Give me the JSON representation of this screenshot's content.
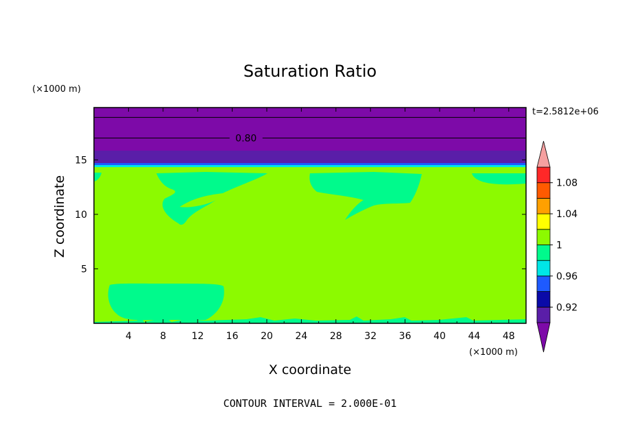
{
  "chart_data": {
    "type": "contour",
    "title": "Saturation Ratio",
    "xlabel": "X coordinate",
    "ylabel": "Z coordinate",
    "x_unit": "(×1000 m)",
    "y_unit": "(×1000 m)",
    "xlim": [
      0,
      50
    ],
    "ylim": [
      0,
      19.8
    ],
    "x_ticks": [
      4,
      8,
      12,
      16,
      20,
      24,
      28,
      32,
      36,
      40,
      44,
      48
    ],
    "y_ticks": [
      5,
      10,
      15
    ],
    "time_label": "t=2.5812e+06",
    "footer": "CONTOUR INTERVAL = 2.000E-01",
    "contour_labels": [
      {
        "text": "0.80",
        "x": 17.6,
        "z": 17.0
      }
    ],
    "upper_layer_contours_z": [
      18.9,
      17.0
    ],
    "colorbar": {
      "levels": [
        0.9,
        0.92,
        0.94,
        0.96,
        0.98,
        1.0,
        1.02,
        1.04,
        1.06,
        1.08,
        1.1
      ],
      "tick_labels": [
        "1.08",
        "1.04",
        "1",
        "0.96",
        "0.92"
      ],
      "tick_values": [
        1.08,
        1.04,
        1.0,
        0.96,
        0.92
      ],
      "colors": [
        "#5a1ea8",
        "#0a0aa8",
        "#1e5aff",
        "#00e6e6",
        "#00fa8c",
        "#8cfa00",
        "#ffff00",
        "#ffa000",
        "#ff5a00",
        "#ff2828"
      ],
      "under_color": "#7d0aa8",
      "over_color": "#f5a0a0"
    },
    "colors": {
      "dominant": "#8cfa00",
      "slightly_subsaturated": "#00fa8c",
      "upper_layer": "#7d0aa8",
      "upper_band": "#5a1ea8",
      "thin_band": "#1e5aff",
      "thin_band2": "#00e6e6"
    }
  }
}
